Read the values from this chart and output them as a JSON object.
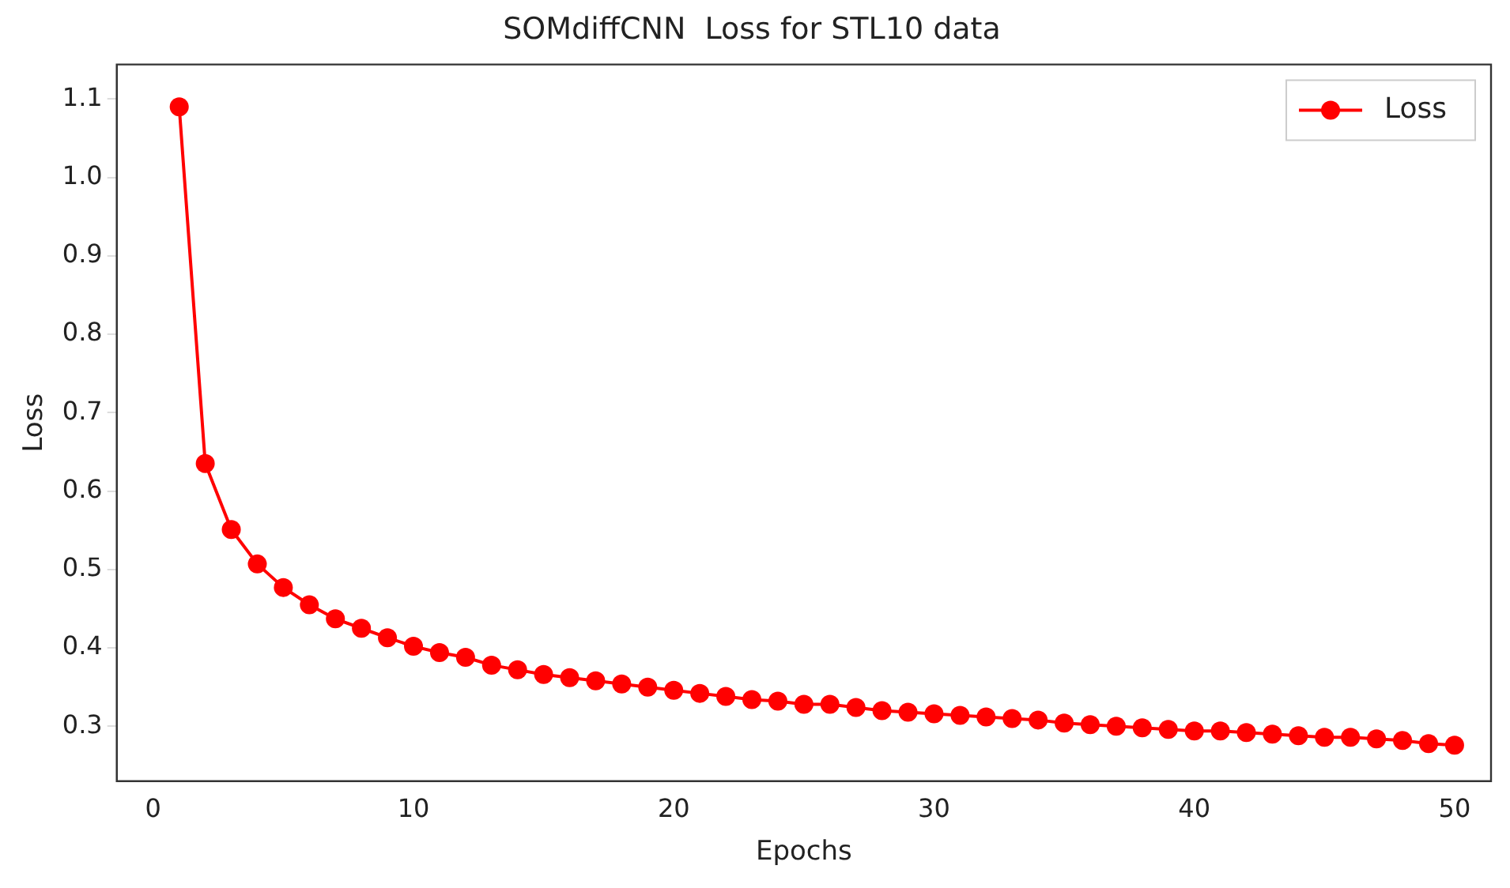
{
  "chart_data": {
    "type": "line",
    "title": "SOMdiffCNN  Loss for STL10 data",
    "xlabel": "Epochs",
    "ylabel": "Loss",
    "x": [
      1,
      2,
      3,
      4,
      5,
      6,
      7,
      8,
      9,
      10,
      11,
      12,
      13,
      14,
      15,
      16,
      17,
      18,
      19,
      20,
      21,
      22,
      23,
      24,
      25,
      26,
      27,
      28,
      29,
      30,
      31,
      32,
      33,
      34,
      35,
      36,
      37,
      38,
      39,
      40,
      41,
      42,
      43,
      44,
      45,
      46,
      47,
      48,
      49,
      50
    ],
    "series": [
      {
        "name": "Loss",
        "color": "#ff0000",
        "values": [
          1.09,
          0.635,
          0.551,
          0.507,
          0.477,
          0.455,
          0.437,
          0.425,
          0.413,
          0.402,
          0.394,
          0.388,
          0.378,
          0.372,
          0.366,
          0.362,
          0.358,
          0.354,
          0.35,
          0.346,
          0.342,
          0.338,
          0.334,
          0.332,
          0.328,
          0.328,
          0.324,
          0.32,
          0.318,
          0.316,
          0.314,
          0.312,
          0.31,
          0.308,
          0.304,
          0.302,
          0.3,
          0.298,
          0.296,
          0.294,
          0.294,
          0.292,
          0.29,
          0.288,
          0.286,
          0.286,
          0.284,
          0.282,
          0.278,
          0.276
        ]
      }
    ],
    "xlim": [
      -1.4,
      51.4
    ],
    "xticks": [
      0,
      10,
      20,
      30,
      40,
      50
    ],
    "ylim": [
      0.23,
      1.144
    ],
    "yticks": [
      {
        "value": 0.3,
        "label": "0.3"
      },
      {
        "value": 0.4,
        "label": "0.4"
      },
      {
        "value": 0.5,
        "label": "0.5"
      },
      {
        "value": 0.6,
        "label": "0.6"
      },
      {
        "value": 0.7,
        "label": "0.7"
      },
      {
        "value": 0.8,
        "label": "0.8"
      },
      {
        "value": 0.9,
        "label": "0.9"
      },
      {
        "value": 1.0,
        "label": "1.0"
      },
      {
        "value": 1.1,
        "label": "1.1"
      }
    ],
    "grid": false,
    "legend": "top right",
    "marker": "circle",
    "line_style": "solid"
  }
}
